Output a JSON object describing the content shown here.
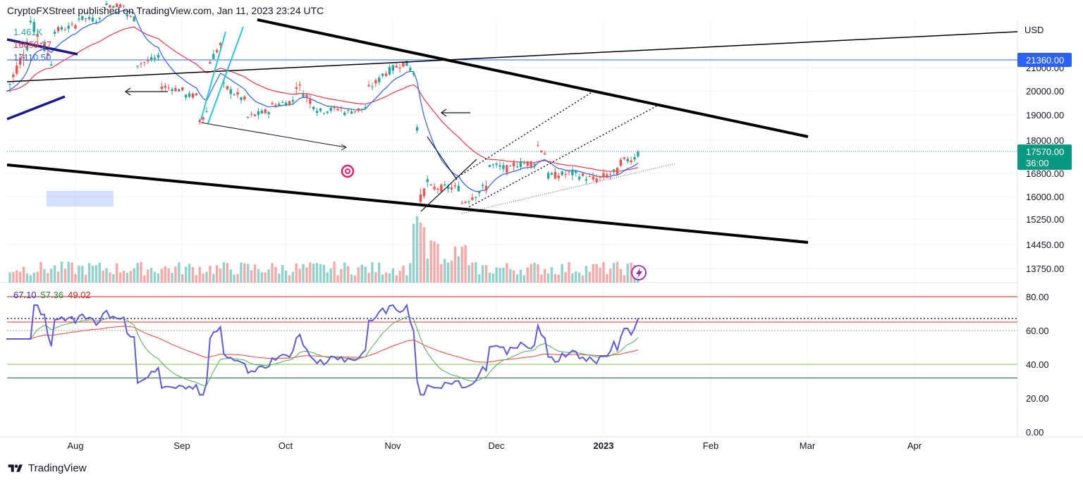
{
  "header": {
    "published": "CryptoFXStreet published on TradingView.com, Jan 11, 2023 23:24 UTC"
  },
  "legend": {
    "volume_value": "1.461K",
    "ema_red_value": "16659.37",
    "ema_blue_value": "17110.50"
  },
  "rsi_legend": {
    "rsi": "67.10",
    "rsi_ma": "57.36",
    "rsi_slow": "49.02"
  },
  "price_axis": {
    "currency": "USD",
    "labels": [
      "21000.00",
      "20000.00",
      "19000.00",
      "18000.00",
      "16800.00",
      "16000.00",
      "15250.00",
      "14450.00",
      "13750.00"
    ],
    "highlight_price": "21360.00",
    "last_price": "17570.00",
    "countdown": "36:00"
  },
  "rsi_axis": {
    "labels": [
      "80.00",
      "60.00",
      "40.00",
      "20.00",
      "0.00"
    ]
  },
  "time_axis": {
    "labels": [
      "Aug",
      "Sep",
      "Oct",
      "Nov",
      "Dec",
      "2023",
      "Feb",
      "Mar",
      "Apr"
    ]
  },
  "footer": {
    "brand": "TradingView"
  },
  "colors": {
    "up": "#26a69a",
    "down": "#ef5350",
    "ema_blue": "#2962ff",
    "ema_red": "#f23645",
    "rsi_line": "#5b5bdb",
    "rsi_ma": "#4caf50",
    "last_price_bg": "#089981",
    "highlight_bg": "#2962ff"
  },
  "chart_data": {
    "type": "candlestick",
    "symbol_currency": "USD",
    "x_range": [
      "2022-07-12",
      "2023-04-30"
    ],
    "price_range": [
      13500,
      21800
    ],
    "key_levels": {
      "resistance_horizontal": 21360,
      "last_price": 17570
    },
    "candles": [
      {
        "date": "2022-07-12",
        "open": 19330,
        "close": 19950
      },
      {
        "date": "2022-07-19",
        "open": 22400,
        "close": 23150
      },
      {
        "date": "2022-07-26",
        "open": 21000,
        "close": 22700
      },
      {
        "date": "2022-08-02",
        "open": 23000,
        "close": 23300
      },
      {
        "date": "2022-08-09",
        "open": 23200,
        "close": 23900
      },
      {
        "date": "2022-08-16",
        "open": 23900,
        "close": 23400
      },
      {
        "date": "2022-08-19",
        "open": 23200,
        "close": 21150
      },
      {
        "date": "2022-08-26",
        "open": 21500,
        "close": 20200
      },
      {
        "date": "2022-09-02",
        "open": 20000,
        "close": 19800
      },
      {
        "date": "2022-09-06",
        "open": 19800,
        "close": 18800
      },
      {
        "date": "2022-09-09",
        "open": 19300,
        "close": 21300
      },
      {
        "date": "2022-09-13",
        "open": 22300,
        "close": 20200
      },
      {
        "date": "2022-09-20",
        "open": 19500,
        "close": 18900
      },
      {
        "date": "2022-09-27",
        "open": 19200,
        "close": 19400
      },
      {
        "date": "2022-10-04",
        "open": 19600,
        "close": 20300
      },
      {
        "date": "2022-10-11",
        "open": 19100,
        "close": 19150
      },
      {
        "date": "2022-10-18",
        "open": 19300,
        "close": 19100
      },
      {
        "date": "2022-10-25",
        "open": 19300,
        "close": 20100
      },
      {
        "date": "2022-10-29",
        "open": 20600,
        "close": 20700
      },
      {
        "date": "2022-11-05",
        "open": 21300,
        "close": 21150
      },
      {
        "date": "2022-11-08",
        "open": 20600,
        "close": 18500
      },
      {
        "date": "2022-11-09",
        "open": 18500,
        "close": 15900
      },
      {
        "date": "2022-11-12",
        "open": 16800,
        "close": 16300
      },
      {
        "date": "2022-11-21",
        "open": 16300,
        "close": 15800
      },
      {
        "date": "2022-11-29",
        "open": 16400,
        "close": 17100
      },
      {
        "date": "2022-12-06",
        "open": 16900,
        "close": 17100
      },
      {
        "date": "2022-12-13",
        "open": 17200,
        "close": 17800
      },
      {
        "date": "2022-12-16",
        "open": 17400,
        "close": 16700
      },
      {
        "date": "2022-12-23",
        "open": 16800,
        "close": 16800
      },
      {
        "date": "2022-12-30",
        "open": 16550,
        "close": 16600
      },
      {
        "date": "2023-01-06",
        "open": 16900,
        "close": 17200
      },
      {
        "date": "2023-01-11",
        "open": 17400,
        "close": 17570
      }
    ],
    "rsi_series": {
      "name": "RSI",
      "range": [
        0,
        80
      ],
      "levels": [
        80,
        60,
        40
      ],
      "last": {
        "rsi": 67.1,
        "rsi_ma": 57.36,
        "slow": 49.02
      }
    }
  }
}
